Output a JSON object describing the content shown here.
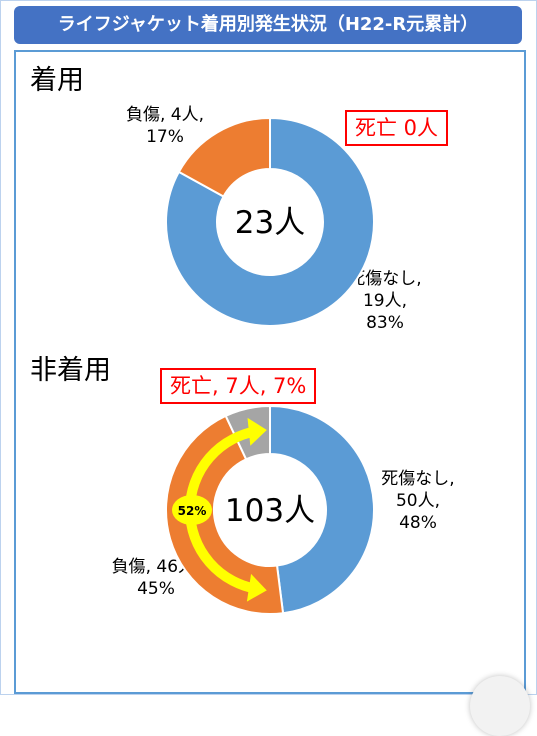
{
  "title": "ライフジャケット着用別発生状況（H22-R元累計）",
  "chart_data": [
    {
      "type": "pie",
      "title": "着用",
      "center_label": "23人",
      "callout": "死亡 0人",
      "slices": [
        {
          "name": "死傷なし",
          "count_label": "19人,",
          "value": 83,
          "value_label": "83%",
          "color": "#5b9bd5"
        },
        {
          "name": "負傷",
          "count_label": "4人,",
          "value": 17,
          "value_label": "17%",
          "color": "#ed7d31"
        }
      ]
    },
    {
      "type": "pie",
      "title": "非着用",
      "center_label": "103人",
      "callout": "死亡, 7人, 7%",
      "arrow_label": "52%",
      "slices": [
        {
          "name": "死傷なし",
          "count_label": "50人,",
          "value": 48,
          "value_label": "48%",
          "color": "#5b9bd5"
        },
        {
          "name": "負傷",
          "count_label": "46人,",
          "value": 45,
          "value_label": "45%",
          "color": "#ed7d31"
        },
        {
          "name": "死亡",
          "value": 7,
          "color": "#a5a5a5"
        }
      ]
    }
  ]
}
